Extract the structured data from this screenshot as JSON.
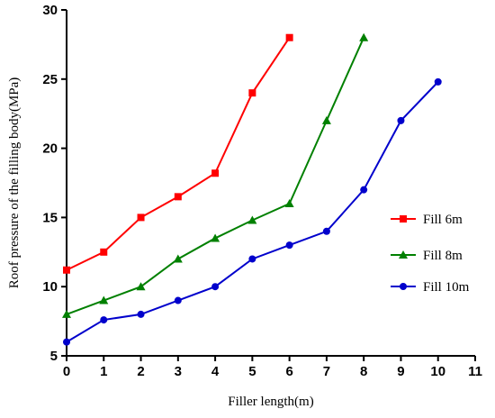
{
  "chart_data": {
    "type": "line",
    "title": "",
    "xlabel": "Filler length(m)",
    "ylabel": "Roof  pressure of the filling body(MPa)",
    "xlim": [
      0,
      11
    ],
    "ylim": [
      5,
      30
    ],
    "xticks": [
      0,
      1,
      2,
      3,
      4,
      5,
      6,
      7,
      8,
      9,
      10,
      11
    ],
    "yticks": [
      5,
      10,
      15,
      20,
      25,
      30
    ],
    "grid": false,
    "legend_position": "right",
    "series": [
      {
        "name": "Fill 6m",
        "color": "#ff0000",
        "marker": "square",
        "x": [
          0,
          1,
          2,
          3,
          4,
          5,
          6
        ],
        "y": [
          11.2,
          12.5,
          15.0,
          16.5,
          18.2,
          24.0,
          28.0
        ]
      },
      {
        "name": "Fill 8m",
        "color": "#008000",
        "marker": "triangle",
        "x": [
          0,
          1,
          2,
          3,
          4,
          5,
          6,
          7,
          8
        ],
        "y": [
          8.0,
          9.0,
          10.0,
          12.0,
          13.5,
          14.8,
          16.0,
          22.0,
          28.0
        ]
      },
      {
        "name": "Fill 10m",
        "color": "#0000cc",
        "marker": "circle",
        "x": [
          0,
          1,
          2,
          3,
          4,
          5,
          6,
          7,
          8,
          9,
          10
        ],
        "y": [
          6.0,
          7.6,
          8.0,
          9.0,
          10.0,
          12.0,
          13.0,
          14.0,
          17.0,
          22.0,
          24.8
        ]
      }
    ]
  }
}
